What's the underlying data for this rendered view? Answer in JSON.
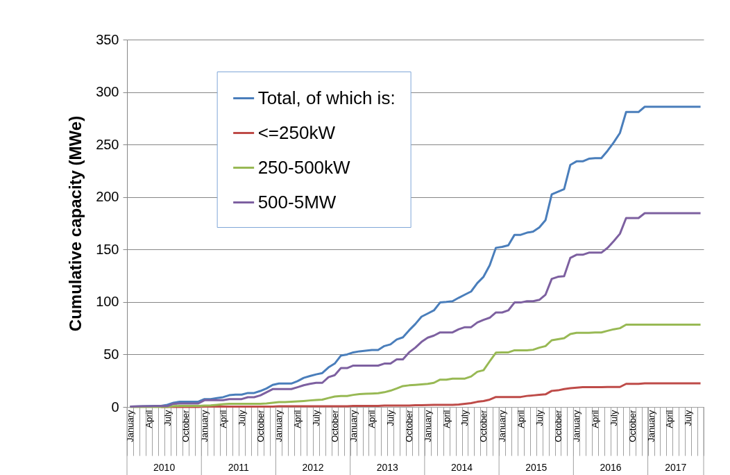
{
  "chart_data": {
    "type": "line",
    "ylabel": "Cumulative capacity (MWe)",
    "categories": [
      "January",
      null,
      null,
      "April",
      null,
      null,
      "July",
      null,
      null,
      "October",
      null,
      null,
      "January",
      null,
      null,
      "April",
      null,
      null,
      "July",
      null,
      null,
      "October",
      null,
      null,
      "January",
      null,
      null,
      "April",
      null,
      null,
      "July",
      null,
      null,
      "October",
      null,
      null,
      "January",
      null,
      null,
      "April",
      null,
      null,
      "July",
      null,
      null,
      "October",
      null,
      null,
      "January",
      null,
      null,
      "April",
      null,
      null,
      "July",
      null,
      null,
      "October",
      null,
      null,
      "January",
      null,
      null,
      "April",
      null,
      null,
      "July",
      null,
      null,
      "October",
      null,
      null,
      "January",
      null,
      null,
      "April",
      null,
      null,
      "July",
      null,
      null,
      "October",
      null,
      null,
      "January",
      null,
      null,
      "April",
      null,
      null,
      "July",
      null,
      null
    ],
    "series": [
      {
        "name": "Total, of which is:",
        "color": "#4a7ebb",
        "values": [
          0.4,
          0.5,
          0.7,
          0.8,
          1,
          1,
          2,
          4,
          5,
          5,
          5,
          5,
          7.5,
          7.5,
          8.5,
          9.3,
          11.2,
          11.7,
          11.7,
          13.3,
          13.3,
          15.2,
          17.6,
          21,
          22.3,
          22.3,
          22.3,
          24.6,
          27.7,
          29.4,
          31,
          32.3,
          37.7,
          41.3,
          48.9,
          50,
          52,
          53,
          53.6,
          54.3,
          54.3,
          58,
          59.6,
          64.3,
          66.3,
          73,
          79,
          86,
          89,
          92,
          99.5,
          100,
          100.7,
          104,
          107,
          110,
          118,
          124,
          135,
          151.6,
          152.5,
          154,
          164,
          164,
          166,
          167,
          171,
          178,
          202.5,
          205,
          207.5,
          230.6,
          234,
          234,
          236.5,
          237,
          237,
          244,
          252,
          261,
          281,
          281,
          281,
          286,
          286,
          286,
          286,
          286,
          286,
          286,
          286,
          286,
          286
        ]
      },
      {
        "name": "<=250kW",
        "color": "#be4b48",
        "values": [
          null,
          null,
          null,
          null,
          null,
          0,
          0,
          0,
          0,
          0,
          0,
          0,
          0.3,
          0.3,
          0.3,
          0.3,
          0.3,
          0.3,
          0.3,
          0.3,
          0.3,
          0.3,
          0.3,
          0.3,
          0.6,
          0.6,
          0.6,
          0.6,
          0.6,
          0.6,
          0.6,
          0.6,
          0.6,
          0.6,
          0.6,
          0.6,
          1,
          1,
          1,
          1,
          1,
          1.3,
          1.3,
          1.3,
          1.3,
          1.3,
          1.6,
          1.6,
          1.8,
          2,
          2,
          2,
          2,
          2.3,
          3,
          3.6,
          4.9,
          5.6,
          7,
          9.5,
          9.5,
          9.5,
          9.5,
          9.5,
          10.5,
          11,
          11.6,
          12,
          15.3,
          15.8,
          17,
          17.8,
          18.3,
          18.8,
          18.8,
          18.8,
          18.8,
          19,
          19,
          19,
          22,
          22,
          22,
          22.5,
          22.5,
          22.5,
          22.5,
          22.5,
          22.5,
          22.5,
          22.5,
          22.5,
          22.5
        ]
      },
      {
        "name": "250-500kW",
        "color": "#98b954",
        "values": [
          0,
          0,
          0,
          0,
          0,
          0,
          0,
          0.8,
          1,
          1,
          1,
          1,
          1.3,
          1.5,
          2,
          2.6,
          3,
          3,
          3,
          3,
          3,
          3,
          3.3,
          4,
          4.6,
          4.6,
          5,
          5.3,
          5.7,
          6.2,
          6.6,
          6.9,
          8.5,
          9.9,
          10.4,
          10.4,
          11.5,
          12.3,
          12.6,
          12.8,
          13,
          14,
          15.5,
          17.6,
          19.9,
          20.6,
          21,
          21.5,
          22,
          23,
          26,
          26,
          27,
          27,
          27,
          29,
          33.5,
          35,
          43.5,
          51.7,
          52,
          52,
          54,
          54,
          54,
          54.5,
          56.5,
          58,
          63.5,
          64.5,
          65.5,
          69.5,
          70.6,
          70.6,
          70.6,
          71,
          71,
          72.5,
          74,
          75,
          78.4,
          78.4,
          78.4,
          78.4,
          78.4,
          78.4,
          78.4,
          78.4,
          78.4,
          78.4,
          78.4,
          78.4,
          78.4
        ]
      },
      {
        "name": "500-5MW",
        "color": "#7d60a0",
        "values": [
          0.4,
          0.5,
          0.6,
          0.7,
          0.8,
          0.8,
          0.8,
          3,
          3.3,
          3.3,
          3.3,
          3.3,
          6.4,
          6.4,
          6.4,
          6.4,
          7.5,
          7.5,
          7.5,
          9.3,
          9.3,
          11,
          14,
          17,
          17,
          17,
          17,
          18.8,
          20.7,
          22,
          23,
          23,
          28.4,
          30.3,
          37,
          37,
          39.4,
          39.4,
          39.4,
          39.4,
          39.4,
          41.3,
          41.3,
          45.3,
          45.3,
          52,
          56.5,
          62,
          66,
          68,
          71,
          71,
          71,
          74,
          76,
          76,
          80.5,
          83,
          85,
          90,
          90,
          92,
          99.5,
          99.5,
          100.7,
          100.7,
          102,
          107,
          122,
          124,
          124.5,
          142,
          145,
          145,
          147,
          147,
          147,
          151.5,
          158,
          165,
          180,
          180,
          180,
          184.6,
          184.6,
          184.6,
          184.6,
          184.6,
          184.6,
          184.6,
          184.6,
          184.6,
          184.6
        ]
      }
    ],
    "ylim": [
      0,
      350
    ],
    "yticks": [
      0,
      50,
      100,
      150,
      200,
      250,
      300,
      350
    ],
    "grid": "y",
    "legend": "top left",
    "annotations": [
      "2010",
      "2011",
      "2012",
      "2013",
      "2014",
      "2015",
      "2016",
      "2017"
    ]
  }
}
